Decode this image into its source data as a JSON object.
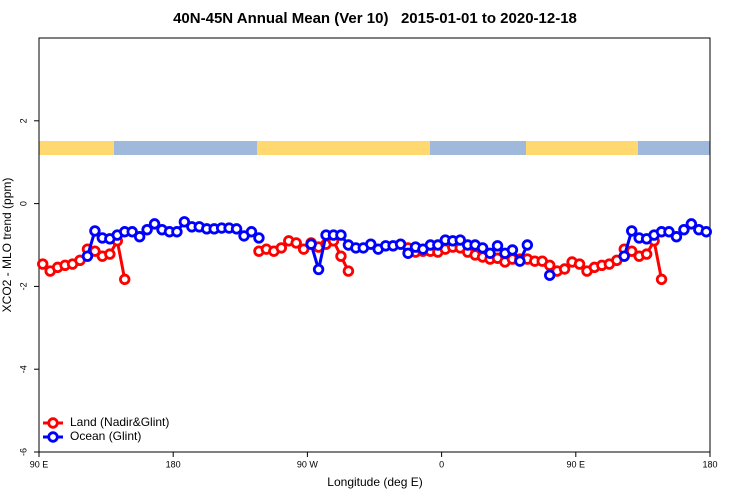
{
  "chart_data": {
    "type": "line",
    "title": "40N-45N Annual Mean (Ver 10)   2015-01-01 to 2020-12-18",
    "x_label": "Longitude (deg E)",
    "y_label": "XCO2 - MLO trend (ppm)",
    "x": [
      92.5,
      97.5,
      102.5,
      107.5,
      112.5,
      117.5,
      122.5,
      127.5,
      132.5,
      137.5,
      142.5,
      147.5,
      152.5,
      157.5,
      162.5,
      167.5,
      172.5,
      177.5,
      182.5,
      187.5,
      192.5,
      197.5,
      202.5,
      207.5,
      212.5,
      217.5,
      222.5,
      227.5,
      232.5,
      237.5,
      242.5,
      247.5,
      252.5,
      257.5,
      262.5,
      267.5,
      272.5,
      277.5,
      282.5,
      287.5,
      292.5,
      297.5,
      302.5,
      307.5,
      312.5,
      317.5,
      322.5,
      327.5,
      332.5,
      337.5,
      342.5,
      347.5,
      352.5,
      357.5,
      362.5,
      367.5,
      372.5,
      377.5,
      382.5,
      387.5,
      392.5,
      397.5,
      402.5,
      407.5,
      412.5,
      417.5,
      422.5,
      427.5,
      432.5,
      437.5,
      442.5,
      447.5,
      452.5,
      457.5,
      462.5,
      467.5,
      472.5,
      477.5,
      482.5,
      487.5,
      492.5,
      497.5,
      502.5,
      507.5,
      512.5,
      517.5,
      522.5,
      527.5,
      532.5,
      537.5
    ],
    "series": [
      {
        "name": "Land (Nadir&Glint)",
        "color": "#ff0000",
        "values": [
          -1.46,
          -1.63,
          -1.54,
          -1.49,
          -1.46,
          -1.37,
          -1.1,
          -1.15,
          -1.27,
          -1.22,
          -0.9,
          -1.83,
          null,
          null,
          null,
          null,
          null,
          null,
          null,
          null,
          null,
          null,
          null,
          null,
          null,
          null,
          null,
          null,
          null,
          -1.15,
          -1.1,
          -1.15,
          -1.07,
          -0.9,
          -0.95,
          -1.1,
          -0.95,
          -1.05,
          -0.98,
          -0.9,
          -1.27,
          -1.63,
          null,
          null,
          null,
          null,
          null,
          null,
          null,
          -1.07,
          -1.17,
          -1.15,
          -1.15,
          -1.17,
          -1.1,
          -1.05,
          -1.07,
          -1.17,
          -1.24,
          -1.29,
          -1.34,
          -1.32,
          -1.41,
          -1.34,
          -1.34,
          -1.34,
          -1.39,
          -1.39,
          -1.49,
          -1.63,
          -1.58,
          -1.41,
          -1.46,
          -1.63,
          -1.54,
          -1.49,
          -1.46,
          -1.37,
          -1.1,
          -1.15,
          -1.27,
          -1.22,
          -0.9,
          -1.83,
          null,
          null,
          null,
          null,
          null,
          null
        ]
      },
      {
        "name": "Ocean (Glint)",
        "color": "#0000ff",
        "values": [
          null,
          null,
          null,
          null,
          null,
          null,
          -1.27,
          -0.66,
          -0.83,
          -0.85,
          -0.76,
          -0.68,
          -0.68,
          -0.8,
          -0.63,
          -0.49,
          -0.63,
          -0.68,
          -0.68,
          -0.44,
          -0.56,
          -0.56,
          -0.61,
          -0.61,
          -0.59,
          -0.59,
          -0.61,
          -0.78,
          -0.68,
          -0.83,
          null,
          null,
          null,
          null,
          null,
          null,
          -0.98,
          -1.59,
          -0.76,
          -0.76,
          -0.76,
          -1.0,
          -1.07,
          -1.07,
          -0.98,
          -1.1,
          -1.02,
          -1.02,
          -0.98,
          -1.2,
          -1.05,
          -1.1,
          -1.0,
          -1.0,
          -0.88,
          -0.9,
          -0.88,
          -1.0,
          -1.0,
          -1.07,
          -1.2,
          -1.02,
          -1.2,
          -1.12,
          -1.39,
          -1.0,
          null,
          null,
          -1.73,
          null,
          null,
          null,
          null,
          null,
          null,
          null,
          null,
          null,
          -1.27,
          -0.66,
          -0.83,
          -0.85,
          -0.76,
          -0.68,
          -0.68,
          -0.8,
          -0.63,
          -0.49,
          -0.63,
          -0.68
        ]
      }
    ],
    "xlim": [
      90,
      540
    ],
    "xticks": [
      {
        "value": 90,
        "label": "90 E"
      },
      180,
      {
        "value": 270,
        "label": "90 W"
      },
      {
        "value": 360,
        "label": "0"
      },
      {
        "value": 450,
        "label": "90 E"
      },
      {
        "value": 540,
        "label": "180"
      }
    ],
    "ylim": [
      -6,
      4
    ],
    "yticks": [
      -6,
      -4,
      -2,
      0,
      2
    ],
    "legend": "lower left"
  }
}
